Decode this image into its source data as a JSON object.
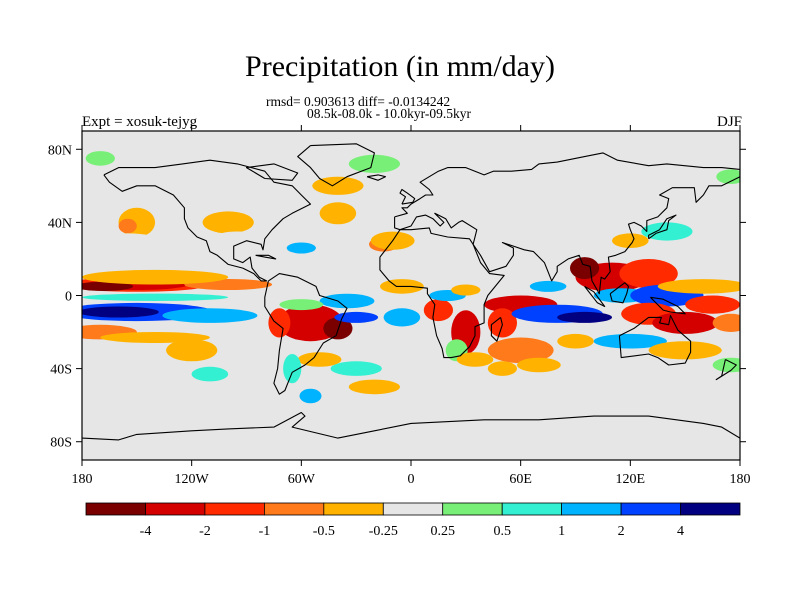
{
  "chart_data": {
    "type": "heatmap",
    "title": "Precipitation (in mm/day)",
    "subtitle_line1": "rmsd= 0.903613 diff= -0.0134242",
    "subtitle_line2": "08.5k-08.0k - 10.0kyr-09.5kyr",
    "left_label": "Expt = xosuk-tejyg",
    "right_label": "DJF",
    "x_ticks": [
      {
        "value": -180,
        "label": "180"
      },
      {
        "value": -120,
        "label": "120W"
      },
      {
        "value": -60,
        "label": "60W"
      },
      {
        "value": 0,
        "label": "0"
      },
      {
        "value": 60,
        "label": "60E"
      },
      {
        "value": 120,
        "label": "120E"
      },
      {
        "value": 180,
        "label": "180"
      }
    ],
    "y_ticks": [
      {
        "value": 80,
        "label": "80N"
      },
      {
        "value": 40,
        "label": "40N"
      },
      {
        "value": 0,
        "label": "0"
      },
      {
        "value": -40,
        "label": "40S"
      },
      {
        "value": -80,
        "label": "80S"
      }
    ],
    "xlim": [
      -180,
      180
    ],
    "ylim": [
      -90,
      90
    ],
    "colorbar": {
      "levels": [
        "-4",
        "-2",
        "-1",
        "-0.5",
        "-0.25",
        "0.25",
        "0.5",
        "1",
        "2",
        "4"
      ],
      "colors": [
        "#7a0000",
        "#d40000",
        "#ff2a00",
        "#ff7a1a",
        "#ffb300",
        "#e6e6e6",
        "#78f078",
        "#33f0d2",
        "#00b3ff",
        "#0040ff",
        "#000080"
      ]
    },
    "neutral_color": "#e6e6e6"
  }
}
